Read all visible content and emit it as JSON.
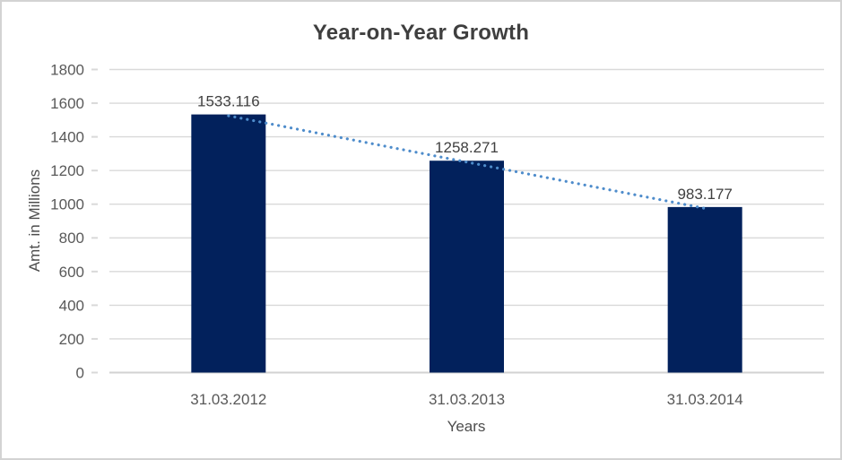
{
  "window": {
    "background_color": "#ffffff",
    "border_color": "#d3d3d3"
  },
  "chart_data": {
    "type": "bar",
    "title": "Year-on-Year Growth",
    "xlabel": "Years",
    "ylabel": "Amt. in Millions",
    "categories": [
      "31.03.2012",
      "31.03.2013",
      "31.03.2014"
    ],
    "values": [
      1533.116,
      1258.271,
      983.177
    ],
    "data_labels": [
      "1533.116",
      "1258.271",
      "983.177"
    ],
    "ylim": [
      0,
      1800
    ],
    "yticks": [
      0,
      200,
      400,
      600,
      800,
      1000,
      1200,
      1400,
      1600,
      1800
    ],
    "grid": true,
    "legend": "none",
    "trendline": {
      "type": "linear",
      "style": "dotted",
      "color": "#4e8ccb"
    },
    "colors": {
      "bar_fill": "#02215c",
      "gridline": "#d9d9d9",
      "axis_line": "#d2d2d2",
      "tick_mark": "#d9d9d9",
      "tick_text": "#595959",
      "title_text": "#3f3f3f",
      "data_label_text": "#404040"
    }
  }
}
